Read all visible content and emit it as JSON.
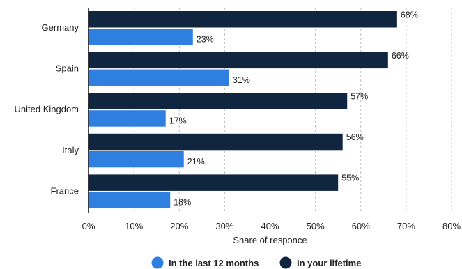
{
  "chart_data": {
    "type": "bar",
    "orientation": "horizontal",
    "categories": [
      "Germany",
      "Spain",
      "United Kingdom",
      "Italy",
      "France"
    ],
    "series": [
      {
        "name": "In your lifetime",
        "values": [
          68,
          66,
          57,
          56,
          55
        ],
        "labels": [
          "68%",
          "66%",
          "57%",
          "56%",
          "55%"
        ],
        "color": "#0f2540"
      },
      {
        "name": "In the last 12 months",
        "values": [
          23,
          31,
          17,
          21,
          18
        ],
        "labels": [
          "23%",
          "31%",
          "17%",
          "21%",
          "18%"
        ],
        "color": "#2f7fe0"
      }
    ],
    "xlabel": "Share of responce",
    "xlim": [
      0,
      80
    ],
    "xticks": [
      0,
      10,
      20,
      30,
      40,
      50,
      60,
      70,
      80
    ],
    "xtick_labels": [
      "0%",
      "10%",
      "20%",
      "30%",
      "40%",
      "50%",
      "60%",
      "70%",
      "80%"
    ],
    "grid": "vertical dashed",
    "legend": {
      "placement": "bottom",
      "items": [
        "In the last 12 months",
        "In your lifetime"
      ]
    }
  }
}
